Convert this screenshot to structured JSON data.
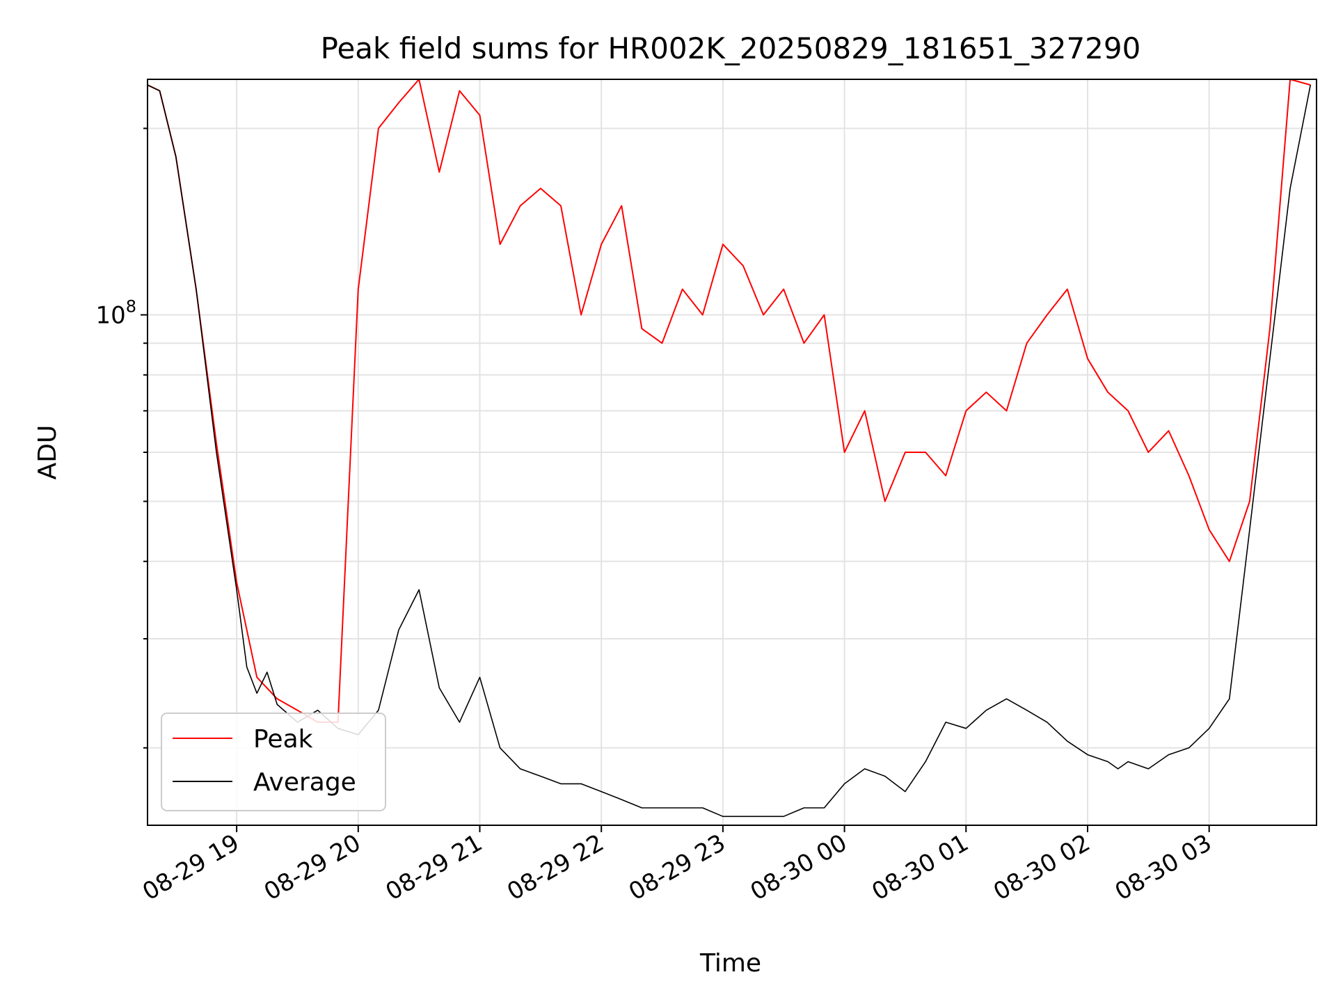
{
  "chart_data": {
    "type": "line",
    "title": "Peak field sums for HR002K_20250829_181651_327290",
    "xlabel": "Time",
    "ylabel": "ADU",
    "y_scale": "log",
    "xlim": [
      "2025-08-29 18:16",
      "2025-08-30 03:53"
    ],
    "ylim": [
      15000000,
      240000000
    ],
    "grid": true,
    "legend_position": "lower-left",
    "x_ticks": [
      "08-29 19",
      "08-29 20",
      "08-29 21",
      "08-29 22",
      "08-29 23",
      "08-30 00",
      "08-30 01",
      "08-30 02",
      "08-30 03"
    ],
    "y_ticks": [
      {
        "value": 100000000,
        "base": "10",
        "exp": "8"
      }
    ],
    "series": [
      {
        "name": "Peak",
        "color": "#ff0000",
        "x": [
          "2025-08-29 18:16",
          "2025-08-29 18:22",
          "2025-08-29 18:30",
          "2025-08-29 18:40",
          "2025-08-29 18:50",
          "2025-08-29 19:00",
          "2025-08-29 19:10",
          "2025-08-29 19:20",
          "2025-08-29 19:30",
          "2025-08-29 19:40",
          "2025-08-29 19:50",
          "2025-08-29 20:00",
          "2025-08-29 20:10",
          "2025-08-29 20:20",
          "2025-08-29 20:30",
          "2025-08-29 20:40",
          "2025-08-29 20:50",
          "2025-08-29 21:00",
          "2025-08-29 21:10",
          "2025-08-29 21:20",
          "2025-08-29 21:30",
          "2025-08-29 21:40",
          "2025-08-29 21:50",
          "2025-08-29 22:00",
          "2025-08-29 22:10",
          "2025-08-29 22:20",
          "2025-08-29 22:30",
          "2025-08-29 22:40",
          "2025-08-29 22:50",
          "2025-08-29 23:00",
          "2025-08-29 23:10",
          "2025-08-29 23:20",
          "2025-08-29 23:30",
          "2025-08-29 23:40",
          "2025-08-29 23:50",
          "2025-08-30 00:00",
          "2025-08-30 00:10",
          "2025-08-30 00:20",
          "2025-08-30 00:30",
          "2025-08-30 00:40",
          "2025-08-30 00:50",
          "2025-08-30 01:00",
          "2025-08-30 01:10",
          "2025-08-30 01:20",
          "2025-08-30 01:30",
          "2025-08-30 01:40",
          "2025-08-30 01:50",
          "2025-08-30 02:00",
          "2025-08-30 02:10",
          "2025-08-30 02:20",
          "2025-08-30 02:30",
          "2025-08-30 02:40",
          "2025-08-30 02:50",
          "2025-08-30 03:00",
          "2025-08-30 03:10",
          "2025-08-30 03:20",
          "2025-08-30 03:30",
          "2025-08-30 03:40",
          "2025-08-30 03:50"
        ],
        "values": [
          235000000,
          230000000,
          180000000,
          110000000,
          62000000,
          37000000,
          26000000,
          24000000,
          23000000,
          22000000,
          22000000,
          110000000,
          200000000,
          220000000,
          240000000,
          170000000,
          230000000,
          210000000,
          130000000,
          150000000,
          160000000,
          150000000,
          100000000,
          130000000,
          150000000,
          95000000,
          90000000,
          110000000,
          100000000,
          130000000,
          120000000,
          100000000,
          110000000,
          90000000,
          100000000,
          60000000,
          70000000,
          50000000,
          60000000,
          60000000,
          55000000,
          70000000,
          75000000,
          70000000,
          90000000,
          100000000,
          110000000,
          85000000,
          75000000,
          70000000,
          60000000,
          65000000,
          55000000,
          45000000,
          40000000,
          50000000,
          95000000,
          240000000,
          235000000
        ]
      },
      {
        "name": "Average",
        "color": "#000000",
        "x": [
          "2025-08-29 18:16",
          "2025-08-29 18:22",
          "2025-08-29 18:30",
          "2025-08-29 18:40",
          "2025-08-29 18:50",
          "2025-08-29 19:00",
          "2025-08-29 19:05",
          "2025-08-29 19:10",
          "2025-08-29 19:15",
          "2025-08-29 19:20",
          "2025-08-29 19:30",
          "2025-08-29 19:40",
          "2025-08-29 19:50",
          "2025-08-29 20:00",
          "2025-08-29 20:10",
          "2025-08-29 20:20",
          "2025-08-29 20:30",
          "2025-08-29 20:40",
          "2025-08-29 20:50",
          "2025-08-29 21:00",
          "2025-08-29 21:10",
          "2025-08-29 21:20",
          "2025-08-29 21:30",
          "2025-08-29 21:40",
          "2025-08-29 21:50",
          "2025-08-29 22:00",
          "2025-08-29 22:10",
          "2025-08-29 22:20",
          "2025-08-29 22:30",
          "2025-08-29 22:40",
          "2025-08-29 22:50",
          "2025-08-29 23:00",
          "2025-08-29 23:10",
          "2025-08-29 23:20",
          "2025-08-29 23:30",
          "2025-08-29 23:40",
          "2025-08-29 23:50",
          "2025-08-30 00:00",
          "2025-08-30 00:10",
          "2025-08-30 00:20",
          "2025-08-30 00:30",
          "2025-08-30 00:40",
          "2025-08-30 00:50",
          "2025-08-30 01:00",
          "2025-08-30 01:10",
          "2025-08-30 01:20",
          "2025-08-30 01:30",
          "2025-08-30 01:40",
          "2025-08-30 01:50",
          "2025-08-30 02:00",
          "2025-08-30 02:10",
          "2025-08-30 02:15",
          "2025-08-30 02:20",
          "2025-08-30 02:30",
          "2025-08-30 02:40",
          "2025-08-30 02:50",
          "2025-08-30 03:00",
          "2025-08-30 03:10",
          "2025-08-30 03:20",
          "2025-08-30 03:30",
          "2025-08-30 03:40",
          "2025-08-30 03:50"
        ],
        "values": [
          235000000,
          230000000,
          180000000,
          110000000,
          60000000,
          36000000,
          27000000,
          24500000,
          26500000,
          23500000,
          22000000,
          23000000,
          21500000,
          21000000,
          23000000,
          31000000,
          36000000,
          25000000,
          22000000,
          26000000,
          20000000,
          18500000,
          18000000,
          17500000,
          17500000,
          17000000,
          16500000,
          16000000,
          16000000,
          16000000,
          16000000,
          15500000,
          15500000,
          15500000,
          15500000,
          16000000,
          16000000,
          17500000,
          18500000,
          18000000,
          17000000,
          19000000,
          22000000,
          21500000,
          23000000,
          24000000,
          23000000,
          22000000,
          20500000,
          19500000,
          19000000,
          18500000,
          19000000,
          18500000,
          19500000,
          20000000,
          21500000,
          24000000,
          45000000,
          85000000,
          160000000,
          235000000
        ]
      }
    ]
  }
}
